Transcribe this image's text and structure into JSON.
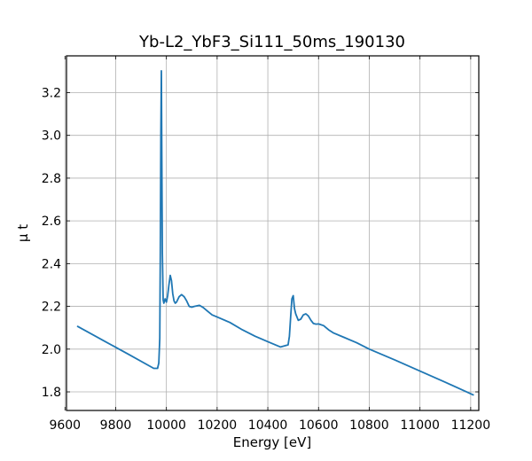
{
  "chart_data": {
    "type": "line",
    "title": "Yb-L2_YbF3_Si111_50ms_190130",
    "xlabel": "Energy [eV]",
    "ylabel": "μ t",
    "xlim": [
      9606,
      11232
    ],
    "ylim": [
      1.713,
      3.372
    ],
    "xticks": [
      9600,
      9800,
      10000,
      10200,
      10400,
      10600,
      10800,
      11000,
      11200
    ],
    "xtick_labels": [
      "9600",
      "9800",
      "10000",
      "10200",
      "10400",
      "10600",
      "10800",
      "11000",
      "11200"
    ],
    "yticks": [
      1.8,
      2.0,
      2.2,
      2.4,
      2.6,
      2.8,
      3.0,
      3.2
    ],
    "ytick_labels": [
      "1.8",
      "2.0",
      "2.2",
      "2.4",
      "2.6",
      "2.8",
      "3.0",
      "3.2"
    ],
    "grid": true,
    "tick_direction": "in",
    "series": [
      {
        "color": "#1f77b4",
        "x": [
          9650,
          9750,
          9850,
          9950,
          9965,
          9970,
          9974,
          9976,
          9978,
          9980,
          9982,
          9984,
          9987,
          9990,
          9995,
          10000,
          10005,
          10010,
          10015,
          10020,
          10025,
          10030,
          10035,
          10040,
          10050,
          10060,
          10070,
          10080,
          10090,
          10100,
          10110,
          10130,
          10145,
          10160,
          10180,
          10200,
          10250,
          10300,
          10350,
          10400,
          10450,
          10480,
          10485,
          10490,
          10495,
          10500,
          10505,
          10510,
          10520,
          10530,
          10540,
          10550,
          10560,
          10570,
          10580,
          10590,
          10600,
          10620,
          10640,
          10660,
          10700,
          10750,
          10800,
          10900,
          11000,
          11100,
          11210
        ],
        "y": [
          2.106,
          2.041,
          1.976,
          1.91,
          1.91,
          1.935,
          2.05,
          2.45,
          3.0,
          3.302,
          2.9,
          2.45,
          2.23,
          2.215,
          2.235,
          2.22,
          2.25,
          2.3,
          2.345,
          2.32,
          2.26,
          2.225,
          2.215,
          2.22,
          2.245,
          2.255,
          2.245,
          2.225,
          2.2,
          2.196,
          2.2,
          2.205,
          2.195,
          2.18,
          2.16,
          2.15,
          2.125,
          2.09,
          2.06,
          2.035,
          2.01,
          2.02,
          2.06,
          2.15,
          2.235,
          2.25,
          2.19,
          2.165,
          2.135,
          2.14,
          2.16,
          2.165,
          2.155,
          2.135,
          2.12,
          2.117,
          2.118,
          2.11,
          2.09,
          2.075,
          2.055,
          2.03,
          2.0,
          1.95,
          1.897,
          1.845,
          1.786
        ]
      }
    ]
  }
}
